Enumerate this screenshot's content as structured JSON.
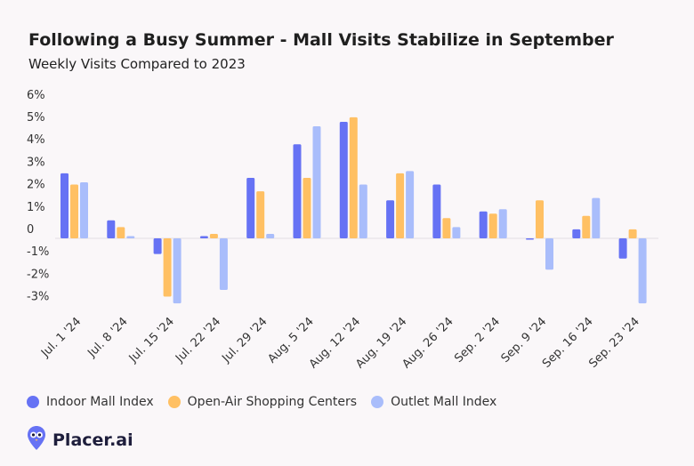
{
  "header": {
    "title": "Following a Busy Summer - Mall Visits Stabilize in September",
    "subtitle": "Weekly Visits Compared to 2023"
  },
  "brand": {
    "name": "Placer.ai",
    "logo_icon": "placer-owl-logo-icon"
  },
  "colors": {
    "indoor": "#6672f4",
    "openair": "#ffc063",
    "outlet": "#a9bdfb"
  },
  "chart_data": {
    "type": "bar",
    "title": "Following a Busy Summer - Mall Visits Stabilize in September",
    "subtitle": "Weekly Visits Compared to 2023",
    "categories": [
      "Jul. 1 '24",
      "Jul. 8 '24",
      "Jul. 15 '24",
      "Jul. 22 '24",
      "Jul. 29 '24",
      "Aug. 5 '24",
      "Aug. 12 '24",
      "Aug. 19 '24",
      "Aug. 26 '24",
      "Sep. 2 '24",
      "Sep. 9 '24",
      "Sep. 16 '24",
      "Sep. 23 '24"
    ],
    "series": [
      {
        "name": "Indoor Mall Index",
        "values": [
          2.9,
          0.8,
          -0.7,
          0.1,
          2.7,
          4.2,
          5.2,
          1.7,
          2.4,
          1.2,
          -0.05,
          0.4,
          -0.9
        ]
      },
      {
        "name": "Open-Air Shopping Centers",
        "values": [
          2.4,
          0.5,
          -2.6,
          0.2,
          2.1,
          2.7,
          5.4,
          2.9,
          0.9,
          1.1,
          1.7,
          1.0,
          0.4
        ]
      },
      {
        "name": "Outlet Mall Index",
        "values": [
          2.5,
          0.1,
          -2.9,
          -2.3,
          0.2,
          5.0,
          2.4,
          3.0,
          0.5,
          1.3,
          -1.4,
          1.8,
          -2.9
        ]
      }
    ],
    "yticks": [
      "6%",
      "5%",
      "4%",
      "3%",
      "2%",
      "1%",
      "0",
      "-1%",
      "-2%",
      "-3%"
    ],
    "ylim": [
      -3,
      6
    ],
    "legend": "bottom-left",
    "grid": false
  }
}
